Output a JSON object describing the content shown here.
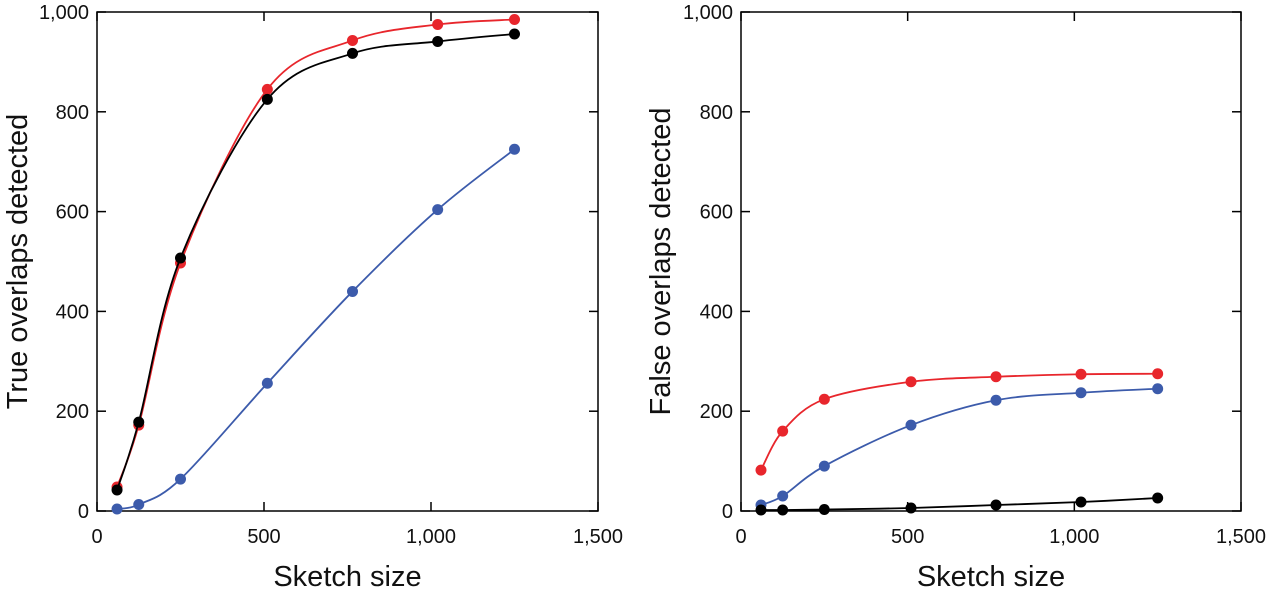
{
  "chart_data": [
    {
      "type": "line",
      "title": "",
      "xlabel": "Sketch size",
      "ylabel": "True overlaps detected",
      "xlim": [
        0,
        1500
      ],
      "ylim": [
        0,
        1000
      ],
      "xticks": [
        0,
        500,
        1000,
        1500
      ],
      "yticks": [
        0,
        200,
        400,
        600,
        800,
        1000
      ],
      "xtick_labels": [
        "0",
        "500",
        "1,000",
        "1,500"
      ],
      "ytick_labels": [
        "0",
        "200",
        "400",
        "600",
        "800",
        "1,000"
      ],
      "grid": false,
      "x": [
        60,
        125,
        250,
        510,
        765,
        1020,
        1250
      ],
      "series": [
        {
          "color": "#e8262c",
          "values": [
            48,
            172,
            497,
            845,
            943,
            975,
            985
          ]
        },
        {
          "color": "#000000",
          "values": [
            42,
            178,
            507,
            825,
            917,
            941,
            956
          ]
        },
        {
          "color": "#3c5bab",
          "values": [
            4,
            13,
            64,
            256,
            440,
            604,
            725
          ]
        }
      ]
    },
    {
      "type": "line",
      "title": "",
      "xlabel": "Sketch size",
      "ylabel": "False overlaps detected",
      "xlim": [
        0,
        1500
      ],
      "ylim": [
        0,
        1000
      ],
      "xticks": [
        0,
        500,
        1000,
        1500
      ],
      "yticks": [
        0,
        200,
        400,
        600,
        800,
        1000
      ],
      "xtick_labels": [
        "0",
        "500",
        "1,000",
        "1,500"
      ],
      "ytick_labels": [
        "0",
        "200",
        "400",
        "600",
        "800",
        "1,000"
      ],
      "grid": false,
      "x": [
        60,
        125,
        250,
        510,
        765,
        1020,
        1250
      ],
      "series": [
        {
          "color": "#e8262c",
          "values": [
            82,
            160,
            224,
            259,
            269,
            274,
            275
          ]
        },
        {
          "color": "#3c5bab",
          "values": [
            12,
            30,
            90,
            172,
            222,
            237,
            245
          ]
        },
        {
          "color": "#000000",
          "values": [
            2,
            2,
            3,
            6,
            12,
            18,
            26
          ]
        }
      ]
    }
  ]
}
